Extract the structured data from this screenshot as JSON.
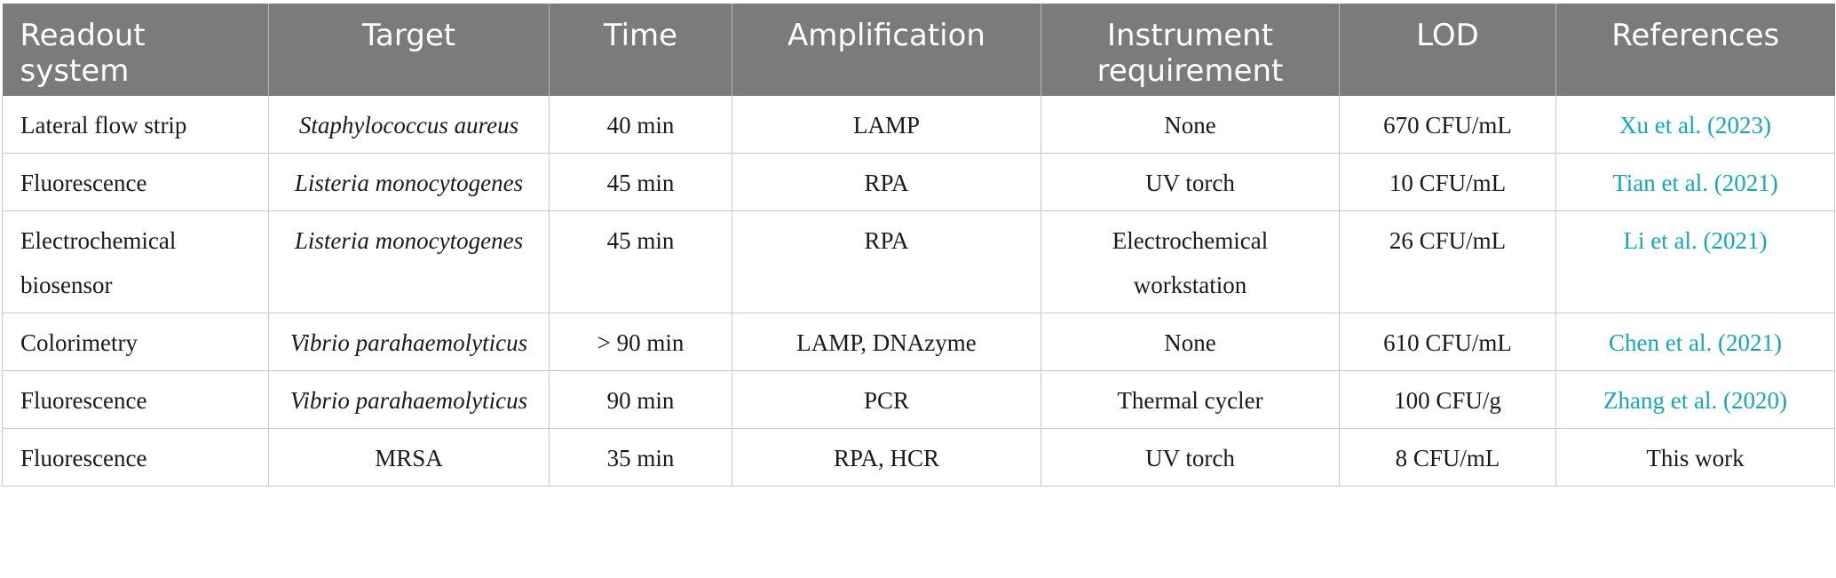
{
  "table": {
    "headers": [
      "Readout system",
      "Target",
      "Time",
      "Amplification",
      "Instrument requirement",
      "LOD",
      "References"
    ],
    "rows": [
      {
        "readout": "Lateral flow strip",
        "target": "Staphylococcus aureus",
        "time": "40 min",
        "amplification": "LAMP",
        "instrument": "None",
        "lod": "670 CFU/mL",
        "reference": "Xu et al. (2023)"
      },
      {
        "readout": "Fluorescence",
        "target": "Listeria monocytogenes",
        "time": "45 min",
        "amplification": "RPA",
        "instrument": "UV torch",
        "lod": "10 CFU/mL",
        "reference": "Tian et al. (2021)"
      },
      {
        "readout": "Electrochemical biosensor",
        "target": "Listeria monocytogenes",
        "time": "45 min",
        "amplification": "RPA",
        "instrument": "Electrochemical workstation",
        "lod": "26 CFU/mL",
        "reference": "Li et al. (2021)"
      },
      {
        "readout": "Colorimetry",
        "target": "Vibrio parahaemolyticus",
        "time": "> 90 min",
        "amplification": "LAMP, DNAzyme",
        "instrument": "None",
        "lod": "610 CFU/mL",
        "reference": "Chen et al. (2021)"
      },
      {
        "readout": "Fluorescence",
        "target": "Vibrio parahaemolyticus",
        "time": "90 min",
        "amplification": "PCR",
        "instrument": "Thermal cycler",
        "lod": "100 CFU/g",
        "reference": "Zhang et al. (2020)"
      },
      {
        "readout": "Fluorescence",
        "target": "MRSA",
        "time": "35 min",
        "amplification": "RPA, HCR",
        "instrument": "UV torch",
        "lod": "8 CFU/mL",
        "reference": "This work"
      }
    ]
  },
  "colors": {
    "header_bg": "#7b7b79",
    "header_text": "#ffffff",
    "link": "#17a6b8",
    "border": "#c8c8c8"
  }
}
